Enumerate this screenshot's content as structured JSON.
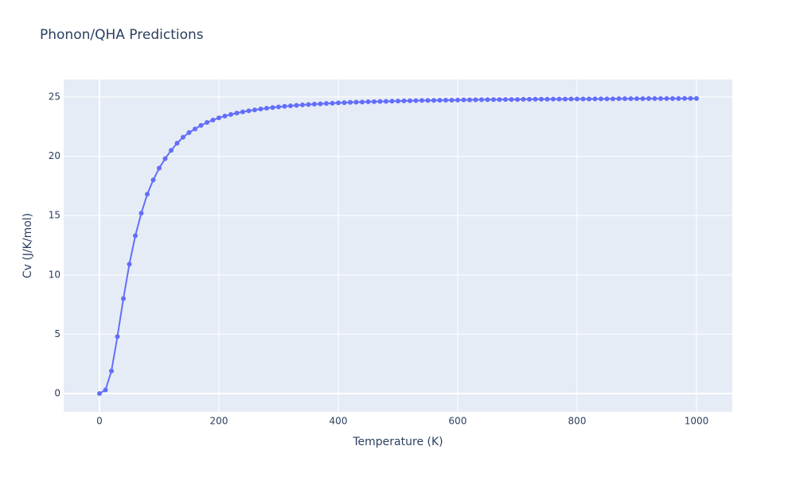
{
  "chart_data": {
    "type": "line",
    "title": "Phonon/QHA Predictions",
    "x_label": "Temperature (K)",
    "y_label": "Cv (J/K/mol)",
    "x": [
      0,
      10,
      20,
      30,
      40,
      50,
      60,
      70,
      80,
      90,
      100,
      110,
      120,
      130,
      140,
      150,
      160,
      170,
      180,
      190,
      200,
      210,
      220,
      230,
      240,
      250,
      260,
      270,
      280,
      290,
      300,
      310,
      320,
      330,
      340,
      350,
      360,
      370,
      380,
      390,
      400,
      410,
      420,
      430,
      440,
      450,
      460,
      470,
      480,
      490,
      500,
      510,
      520,
      530,
      540,
      550,
      560,
      570,
      580,
      590,
      600,
      610,
      620,
      630,
      640,
      650,
      660,
      670,
      680,
      690,
      700,
      710,
      720,
      730,
      740,
      750,
      760,
      770,
      780,
      790,
      800,
      810,
      820,
      830,
      840,
      850,
      860,
      870,
      880,
      890,
      900,
      910,
      920,
      930,
      940,
      950,
      960,
      970,
      980,
      990,
      1000
    ],
    "series": [
      {
        "color": "#636efa",
        "values": [
          0,
          0.3,
          1.9,
          4.8,
          8.0,
          10.9,
          13.3,
          15.2,
          16.8,
          18.0,
          19.0,
          19.8,
          20.5,
          21.1,
          21.6,
          22.0,
          22.3,
          22.6,
          22.85,
          23.05,
          23.24,
          23.39,
          23.52,
          23.64,
          23.74,
          23.83,
          23.91,
          23.98,
          24.05,
          24.11,
          24.16,
          24.21,
          24.25,
          24.29,
          24.33,
          24.36,
          24.39,
          24.42,
          24.45,
          24.47,
          24.5,
          24.52,
          24.54,
          24.56,
          24.57,
          24.59,
          24.6,
          24.62,
          24.63,
          24.64,
          24.65,
          24.67,
          24.68,
          24.69,
          24.7,
          24.7,
          24.71,
          24.72,
          24.73,
          24.73,
          24.74,
          24.75,
          24.75,
          24.76,
          24.77,
          24.77,
          24.78,
          24.78,
          24.79,
          24.79,
          24.79,
          24.8,
          24.8,
          24.81,
          24.81,
          24.81,
          24.82,
          24.82,
          24.82,
          24.83,
          24.83,
          24.83,
          24.83,
          24.84,
          24.84,
          24.84,
          24.84,
          24.85,
          24.85,
          24.85,
          24.85,
          24.85,
          24.86,
          24.86,
          24.86,
          24.86,
          24.86,
          24.86,
          24.87,
          24.87,
          24.87
        ]
      }
    ],
    "xlim": [
      -60,
      1060
    ],
    "xticks": [
      0,
      200,
      400,
      600,
      800,
      1000
    ],
    "ylim": [
      -1.54,
      26.47
    ],
    "yticks": [
      0,
      5,
      10,
      15,
      20,
      25
    ],
    "grid": true
  }
}
